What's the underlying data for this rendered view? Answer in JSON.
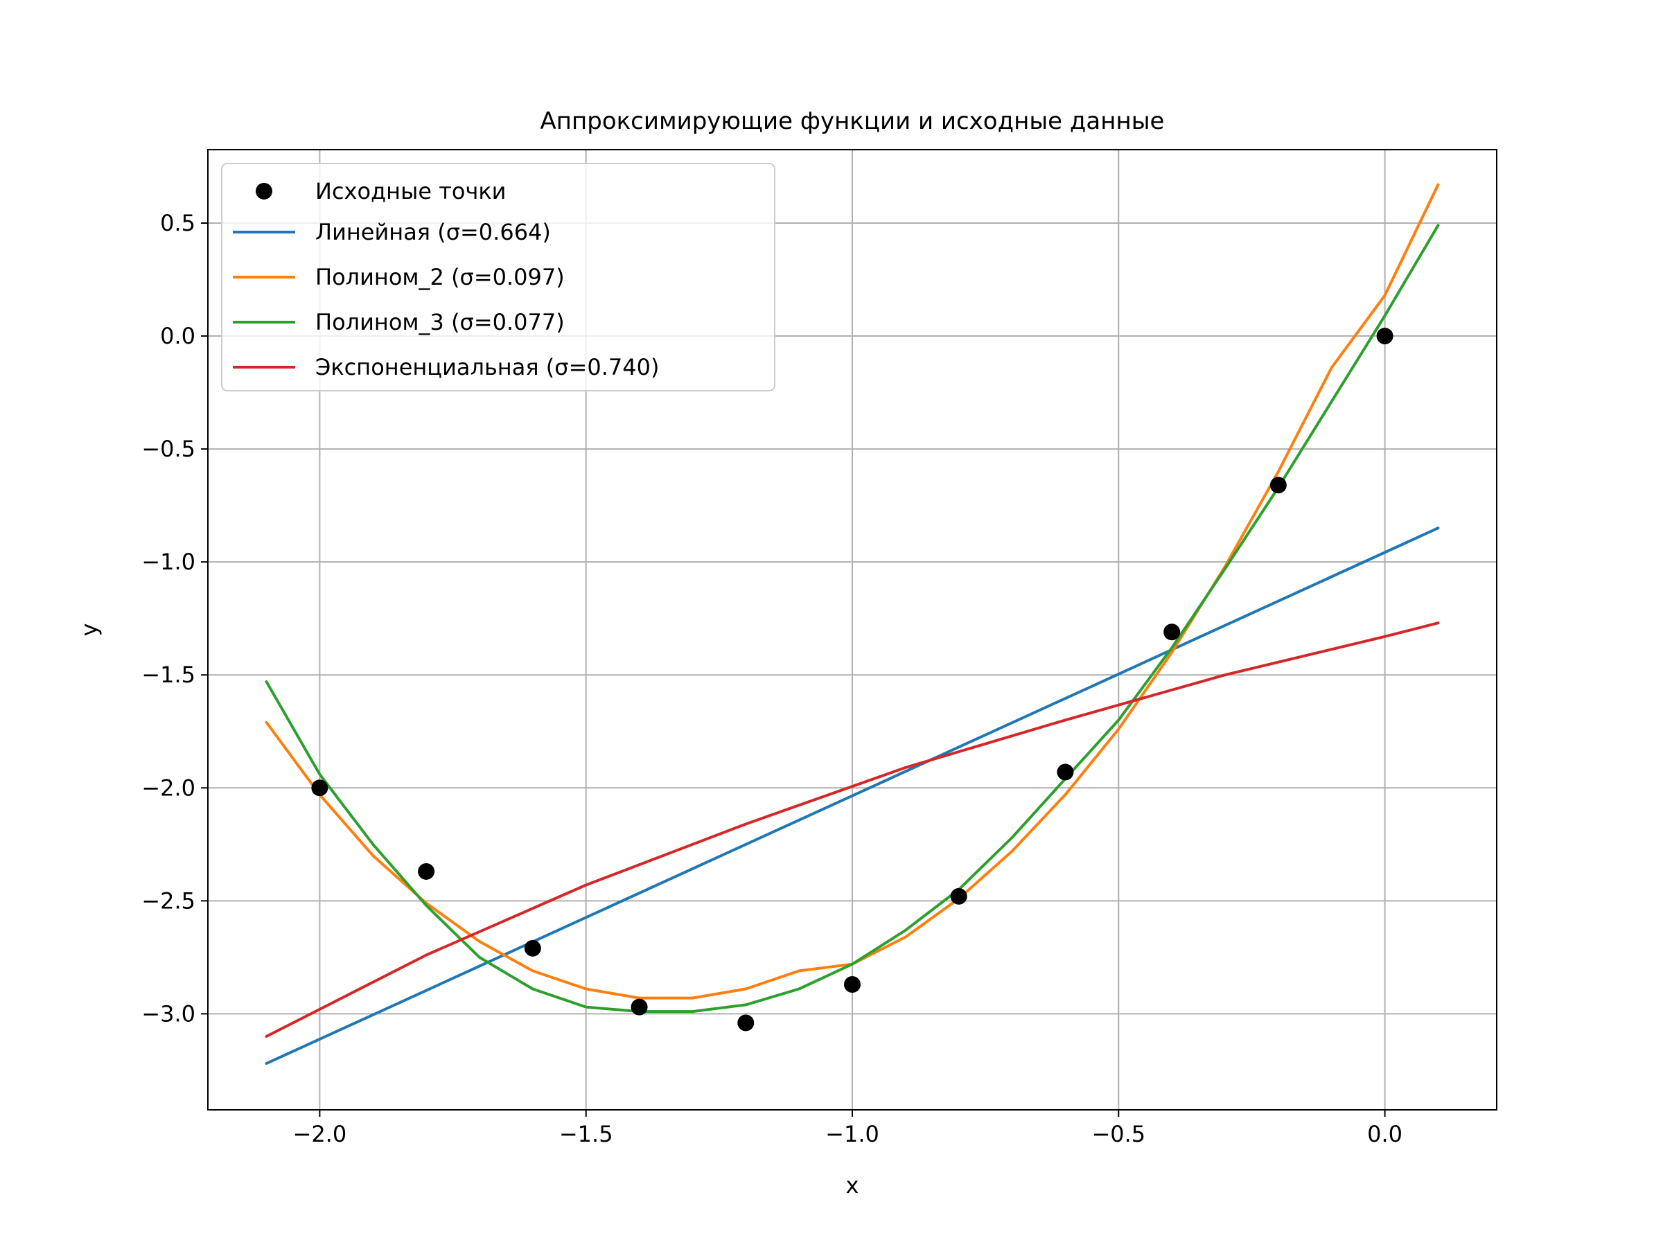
{
  "chart_data": {
    "type": "line",
    "title": "Аппроксимирующие функции и исходные данные",
    "xlabel": "x",
    "ylabel": "y",
    "xlim": [
      -2.21,
      0.21
    ],
    "ylim": [
      -3.425,
      0.825
    ],
    "grid": true,
    "legend_position": "upper-left",
    "x_ticks": [
      -2.0,
      -1.5,
      -1.0,
      -0.5,
      0.0
    ],
    "x_tick_labels": [
      "−2.0",
      "−1.5",
      "−1.0",
      "−0.5",
      "0.0"
    ],
    "y_ticks": [
      0.5,
      0.0,
      -0.5,
      -1.0,
      -1.5,
      -2.0,
      -2.5,
      -3.0
    ],
    "y_tick_labels": [
      "0.5",
      "0.0",
      "−0.5",
      "−1.0",
      "−1.5",
      "−2.0",
      "−2.5",
      "−3.0"
    ],
    "scatter": {
      "name": "Исходные точки",
      "color": "#000000",
      "x": [
        -2.0,
        -1.8,
        -1.6,
        -1.4,
        -1.2,
        -1.0,
        -0.8,
        -0.6,
        -0.4,
        -0.2,
        0.0
      ],
      "y": [
        -2.0,
        -2.37,
        -2.71,
        -2.97,
        -3.04,
        -2.87,
        -2.48,
        -1.93,
        -1.31,
        -0.66,
        0.0
      ]
    },
    "series": [
      {
        "name": "Линейная (σ=0.664)",
        "color": "#1f77b4",
        "x": [
          -2.1,
          0.1
        ],
        "y": [
          -3.22,
          -0.85
        ]
      },
      {
        "name": "Полином_2 (σ=0.097)",
        "color": "#ff7f0e",
        "x": [
          -2.1,
          -2.0,
          -1.9,
          -1.8,
          -1.7,
          -1.6,
          -1.5,
          -1.4,
          -1.3,
          -1.2,
          -1.1,
          -1.0,
          -0.9,
          -0.8,
          -0.7,
          -0.6,
          -0.5,
          -0.4,
          -0.3,
          -0.2,
          -0.1,
          0.0,
          0.1
        ],
        "y": [
          -1.71,
          -2.03,
          -2.3,
          -2.51,
          -2.68,
          -2.81,
          -2.89,
          -2.93,
          -2.93,
          -2.89,
          -2.81,
          -2.78,
          -2.66,
          -2.49,
          -2.28,
          -2.03,
          -1.74,
          -1.4,
          -1.02,
          -0.6,
          -0.14,
          0.18,
          0.67
        ]
      },
      {
        "name": "Полином_3 (σ=0.077)",
        "color": "#2ca02c",
        "x": [
          -2.1,
          -2.0,
          -1.9,
          -1.8,
          -1.7,
          -1.6,
          -1.5,
          -1.4,
          -1.3,
          -1.2,
          -1.1,
          -1.0,
          -0.9,
          -0.8,
          -0.7,
          -0.6,
          -0.5,
          -0.4,
          -0.3,
          -0.2,
          -0.1,
          0.0,
          0.1
        ],
        "y": [
          -1.53,
          -1.94,
          -2.25,
          -2.52,
          -2.75,
          -2.89,
          -2.97,
          -2.99,
          -2.99,
          -2.96,
          -2.89,
          -2.78,
          -2.63,
          -2.45,
          -2.22,
          -1.96,
          -1.7,
          -1.38,
          -1.03,
          -0.67,
          -0.29,
          0.09,
          0.49
        ]
      },
      {
        "name": "Экспоненциальная (σ=0.740)",
        "color": "#d62728",
        "x": [
          -2.1,
          -1.8,
          -1.5,
          -1.2,
          -0.9,
          -0.6,
          -0.3,
          0.0,
          0.1
        ],
        "y": [
          -3.1,
          -2.74,
          -2.43,
          -2.16,
          -1.91,
          -1.7,
          -1.5,
          -1.33,
          -1.27
        ]
      }
    ]
  }
}
